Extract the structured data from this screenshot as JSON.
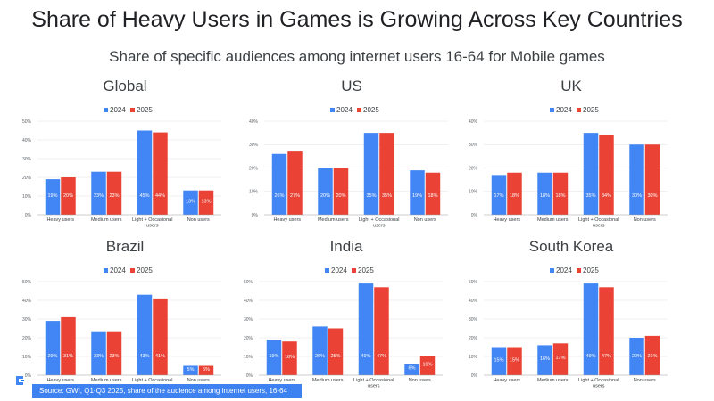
{
  "title": "Share of Heavy Users in Games is Growing Across Key Countries",
  "subtitle": "Share of specific audiences among internet users 16-64 for Mobile games",
  "source": "Source: GWI, Q1-Q3 2025, share of the audience among internet users, 16-64",
  "colors": {
    "s2024": "#4285f4",
    "s2025": "#ea4335"
  },
  "chart_data": [
    {
      "type": "bar",
      "title": "Global",
      "categories": [
        "Heavy users",
        "Medium users",
        "Light + Occasional users",
        "Non users"
      ],
      "series": [
        {
          "name": "2024",
          "values": [
            19,
            23,
            45,
            13
          ],
          "labels": [
            "19%",
            "23%",
            "45%",
            "13%"
          ]
        },
        {
          "name": "2025",
          "values": [
            20,
            23,
            44,
            13
          ],
          "labels": [
            "20%",
            "23%",
            "44%",
            "13%"
          ]
        }
      ],
      "ylim": [
        0,
        50
      ],
      "yticks": [
        0,
        10,
        20,
        30,
        40,
        50
      ],
      "yticklabels": [
        "0%",
        "10%",
        "20%",
        "30%",
        "40%",
        "50%"
      ],
      "legend": "top-center",
      "grid": true
    },
    {
      "type": "bar",
      "title": "US",
      "categories": [
        "Heavy users",
        "Medium users",
        "Light + Occasional users",
        "Non users"
      ],
      "series": [
        {
          "name": "2024",
          "values": [
            26,
            20,
            35,
            19
          ],
          "labels": [
            "26%",
            "20%",
            "35%",
            "19%"
          ]
        },
        {
          "name": "2025",
          "values": [
            27,
            20,
            35,
            18
          ],
          "labels": [
            "27%",
            "20%",
            "35%",
            "18%"
          ]
        }
      ],
      "ylim": [
        0,
        40
      ],
      "yticks": [
        0,
        10,
        20,
        30,
        40
      ],
      "yticklabels": [
        "0%",
        "10%",
        "20%",
        "30%",
        "40%"
      ],
      "legend": "top-center",
      "grid": true
    },
    {
      "type": "bar",
      "title": "UK",
      "categories": [
        "Heavy users",
        "Medium users",
        "Light + Occasional users",
        "Non users"
      ],
      "series": [
        {
          "name": "2024",
          "values": [
            17,
            18,
            35,
            30
          ],
          "labels": [
            "17%",
            "18%",
            "35%",
            "30%"
          ]
        },
        {
          "name": "2025",
          "values": [
            18,
            18,
            34,
            30
          ],
          "labels": [
            "18%",
            "18%",
            "34%",
            "30%"
          ]
        }
      ],
      "ylim": [
        0,
        40
      ],
      "yticks": [
        0,
        10,
        20,
        30,
        40
      ],
      "yticklabels": [
        "0%",
        "10%",
        "20%",
        "30%",
        "40%"
      ],
      "legend": "top-center",
      "grid": true
    },
    {
      "type": "bar",
      "title": "Brazil",
      "categories": [
        "Heavy users",
        "Medium users",
        "Light + Occasional users",
        "Non users"
      ],
      "series": [
        {
          "name": "2024",
          "values": [
            29,
            23,
            43,
            5
          ],
          "labels": [
            "29%",
            "23%",
            "43%",
            "5%"
          ]
        },
        {
          "name": "2025",
          "values": [
            31,
            23,
            41,
            5
          ],
          "labels": [
            "31%",
            "23%",
            "41%",
            "5%"
          ]
        }
      ],
      "ylim": [
        0,
        50
      ],
      "yticks": [
        0,
        10,
        20,
        30,
        40,
        50
      ],
      "yticklabels": [
        "0%",
        "10%",
        "20%",
        "30%",
        "40%",
        "50%"
      ],
      "legend": "top-center",
      "grid": true
    },
    {
      "type": "bar",
      "title": "India",
      "categories": [
        "Heavy users",
        "Medium users",
        "Light + Occasional users",
        "Non users"
      ],
      "series": [
        {
          "name": "2024",
          "values": [
            19,
            26,
            49,
            6
          ],
          "labels": [
            "19%",
            "26%",
            "49%",
            "6%"
          ]
        },
        {
          "name": "2025",
          "values": [
            18,
            25,
            47,
            10
          ],
          "labels": [
            "18%",
            "25%",
            "47%",
            "10%"
          ]
        }
      ],
      "ylim": [
        0,
        50
      ],
      "yticks": [
        0,
        10,
        20,
        30,
        40,
        50
      ],
      "yticklabels": [
        "0%",
        "10%",
        "20%",
        "30%",
        "40%",
        "50%"
      ],
      "legend": "top-center",
      "grid": true
    },
    {
      "type": "bar",
      "title": "South Korea",
      "categories": [
        "Heavy users",
        "Medium users",
        "Light + Occasional users",
        "Non users"
      ],
      "series": [
        {
          "name": "2024",
          "values": [
            15,
            16,
            49,
            20
          ],
          "labels": [
            "15%",
            "16%",
            "49%",
            "20%"
          ]
        },
        {
          "name": "2025",
          "values": [
            15,
            17,
            47,
            21
          ],
          "labels": [
            "15%",
            "17%",
            "47%",
            "21%"
          ]
        }
      ],
      "ylim": [
        0,
        50
      ],
      "yticks": [
        0,
        10,
        20,
        30,
        40,
        50
      ],
      "yticklabels": [
        "0%",
        "10%",
        "20%",
        "30%",
        "40%",
        "50%"
      ],
      "legend": "top-center",
      "grid": true
    }
  ]
}
